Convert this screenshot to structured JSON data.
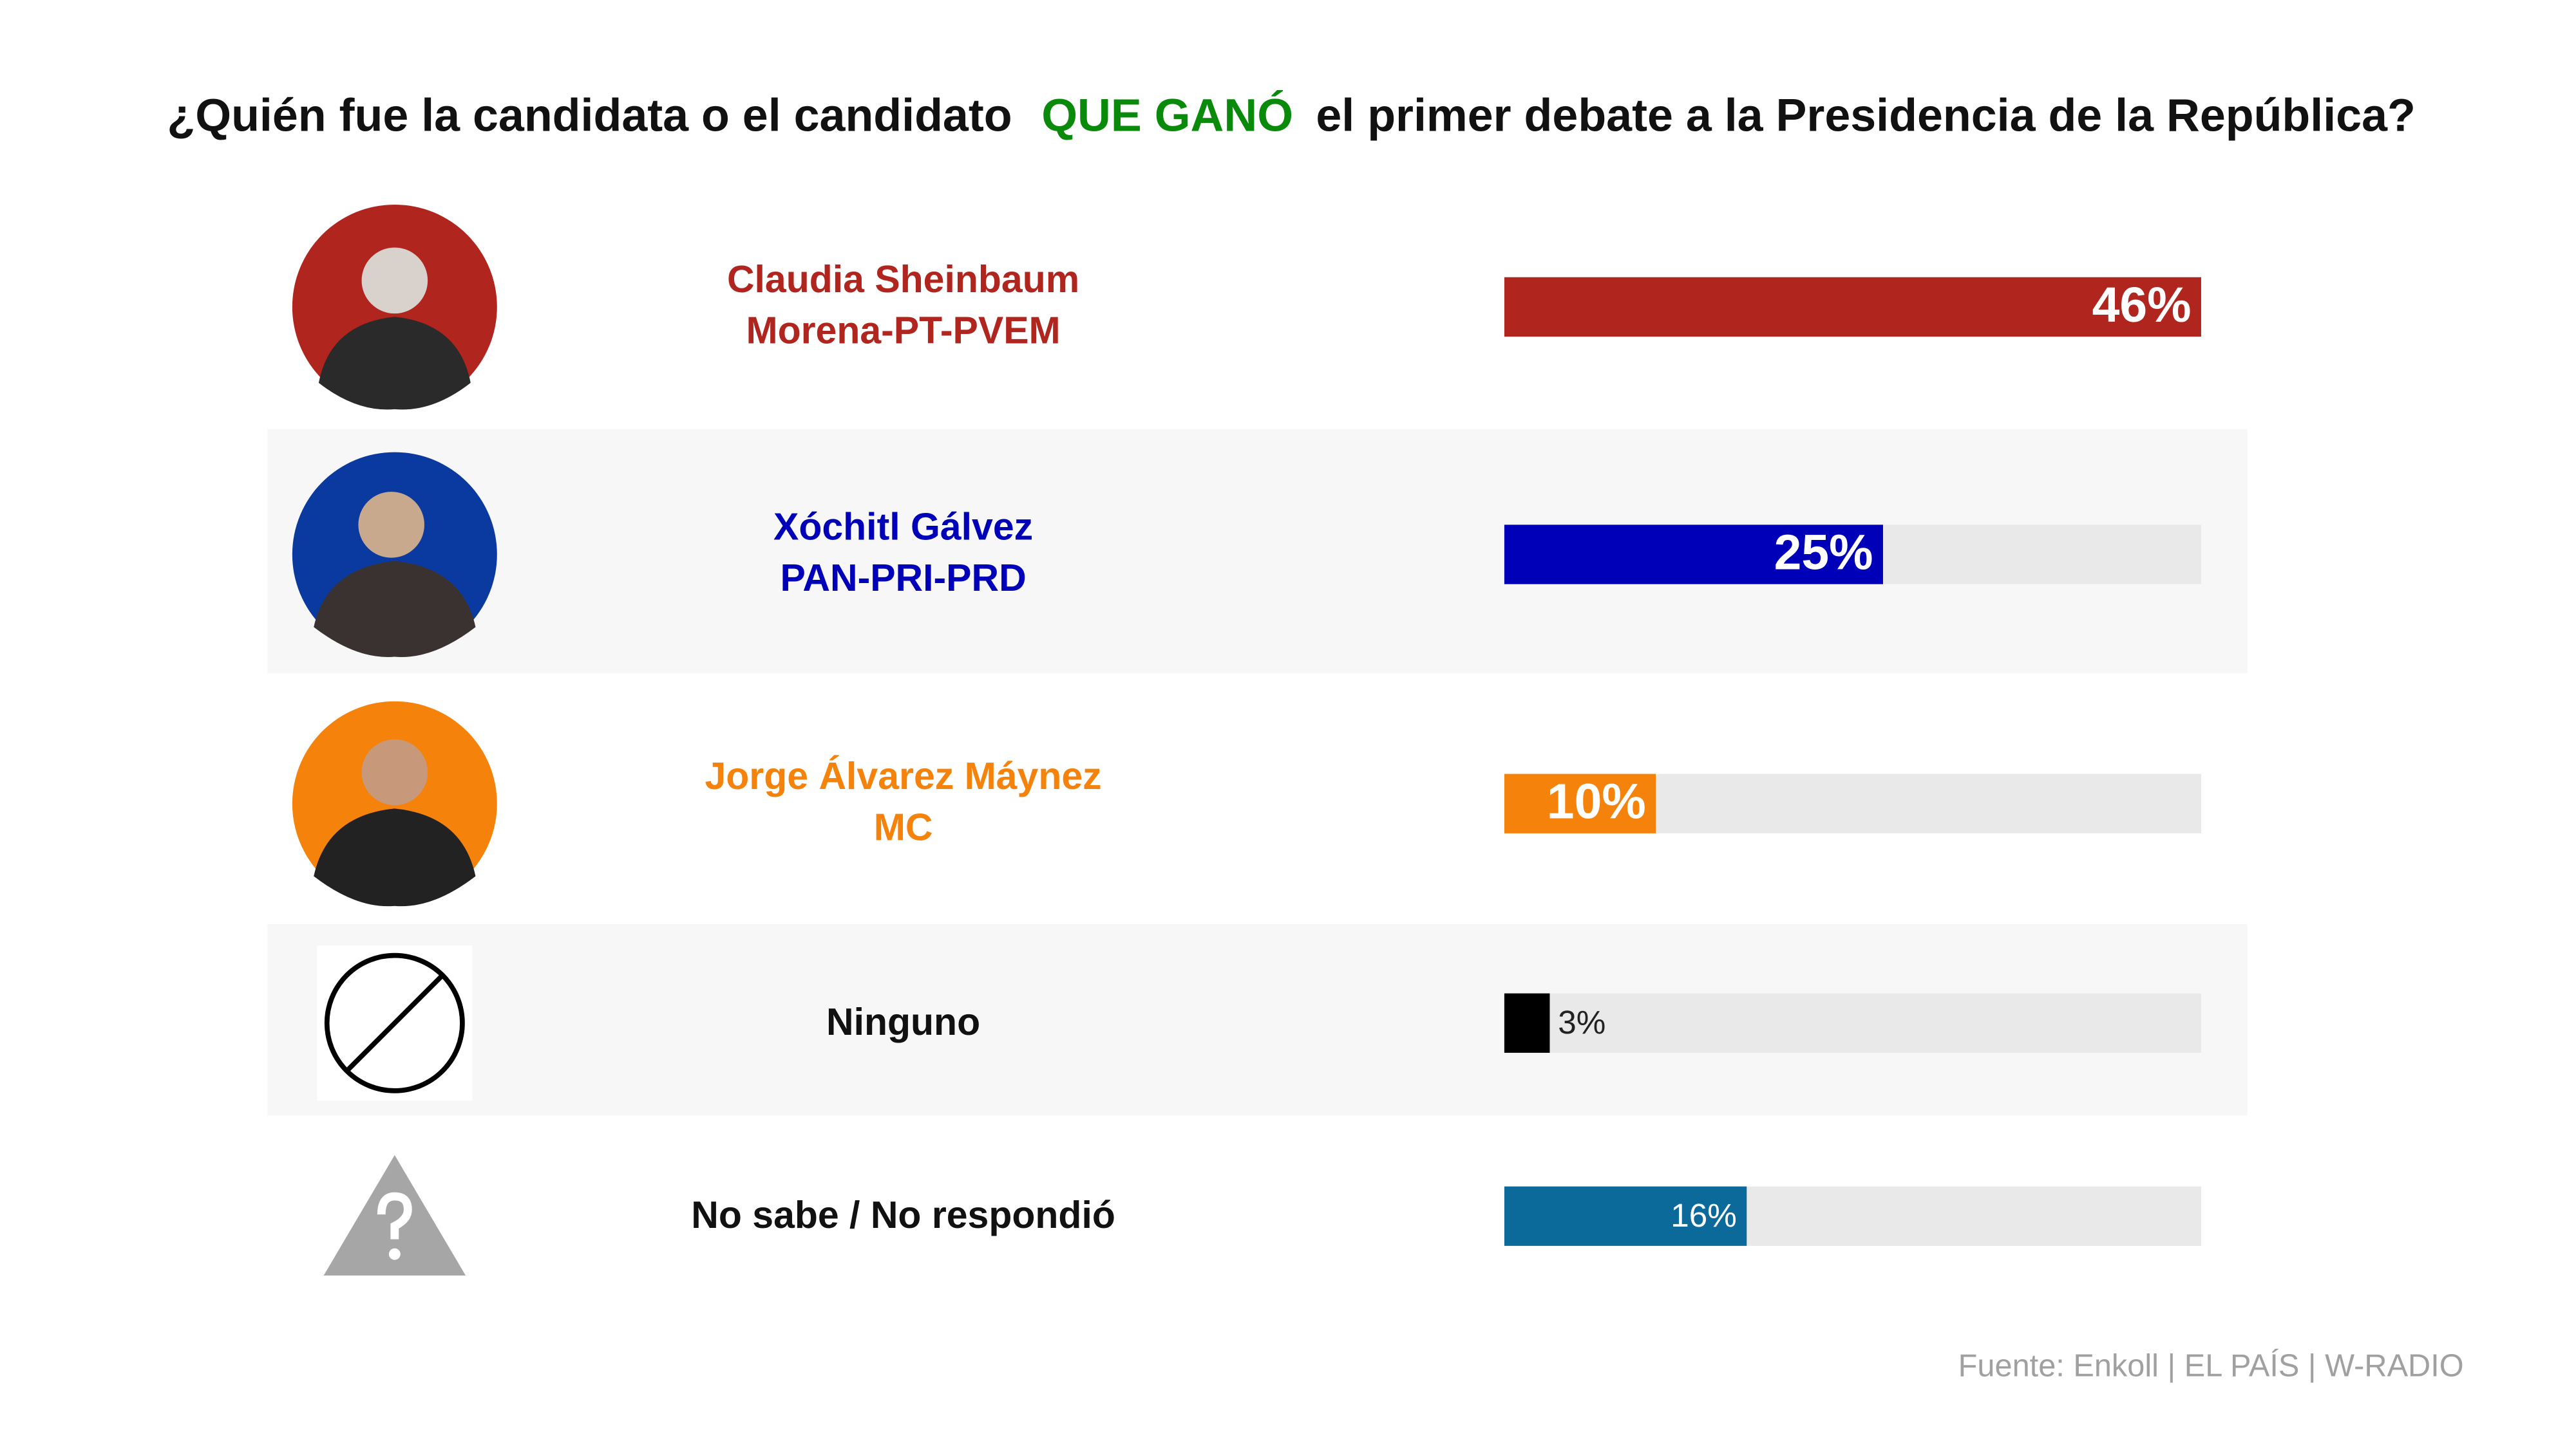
{
  "chart_data": {
    "type": "bar",
    "title_parts": [
      "¿Quién fue la candidata o el candidato",
      "QUE GANÓ",
      "el primer debate a la Presidencia de la República?"
    ],
    "title_colors": [
      "#111111",
      "#0a8a0a",
      "#111111"
    ],
    "categories": [
      "Claudia Sheinbaum",
      "Xóchitl Gálvez",
      "Jorge Álvarez Máynez",
      "Ninguno",
      "No sabe / No respondió"
    ],
    "parties": [
      "Morena-PT-PVEM",
      "PAN-PRI-PRD",
      "MC",
      null,
      null
    ],
    "values": [
      46,
      25,
      10,
      3,
      16
    ],
    "value_labels": [
      "46%",
      "25%",
      "10%",
      "3%",
      "16%"
    ],
    "colors": [
      "#b1251f",
      "#0000b8",
      "#f5820a",
      "#000000",
      "#0c6a9b"
    ],
    "label_colors": [
      "#b1251f",
      "#0000b8",
      "#f5820a",
      "#111111",
      "#111111"
    ],
    "label_bold": [
      true,
      true,
      true,
      false,
      false
    ],
    "xlim": [
      0,
      46
    ],
    "source": "Fuente: Enkoll | EL PAÍS | W-RADIO"
  }
}
